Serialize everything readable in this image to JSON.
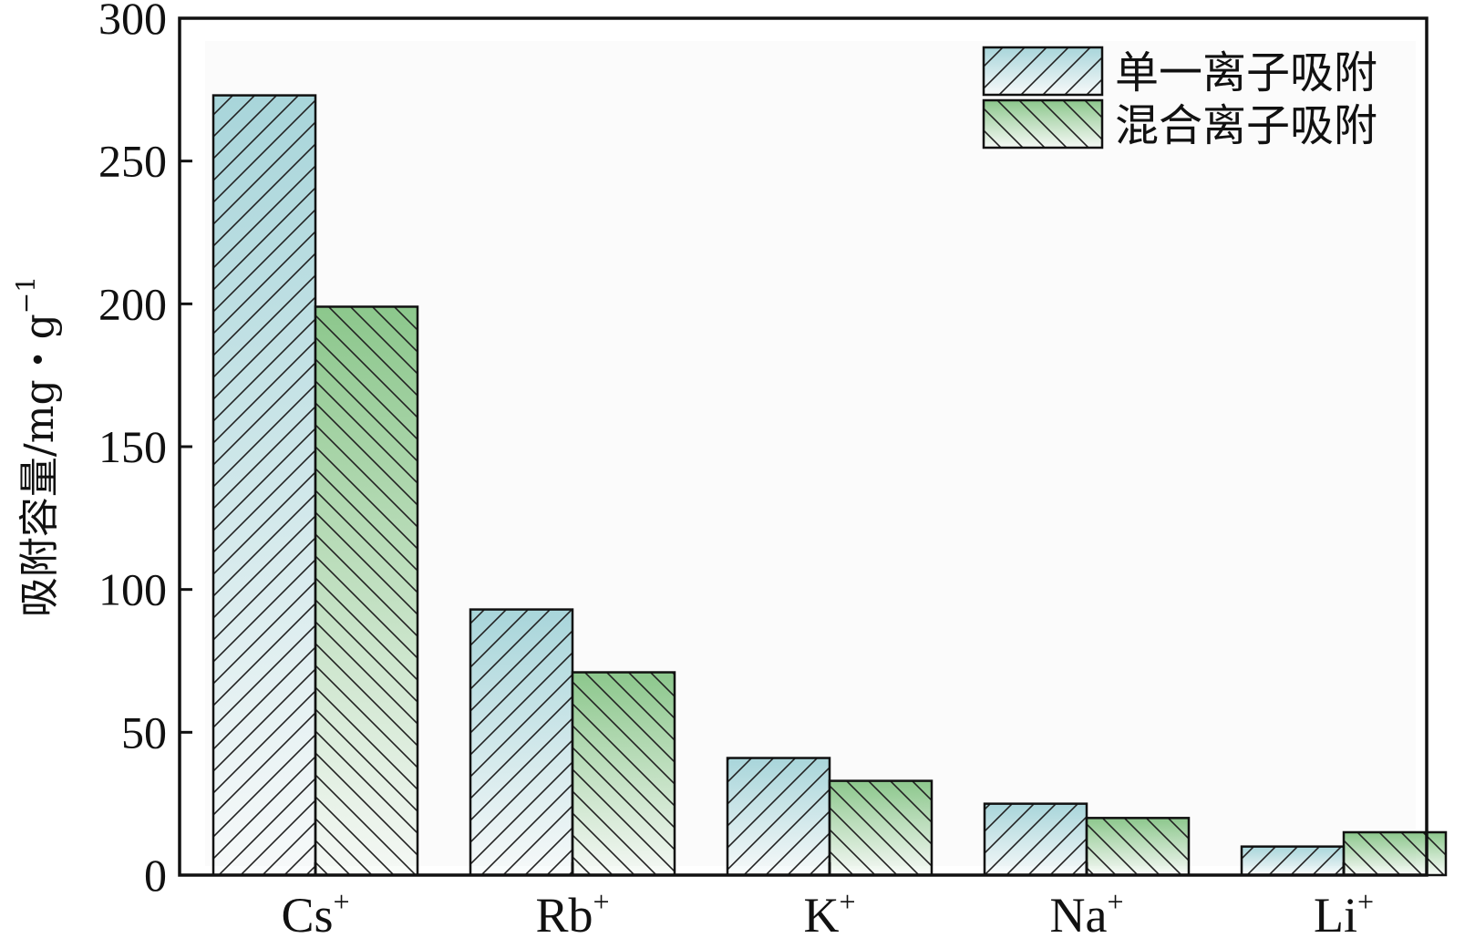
{
  "chart_data": {
    "type": "bar",
    "categories": [
      {
        "base": "Cs",
        "sup": "+"
      },
      {
        "base": "Rb",
        "sup": "+"
      },
      {
        "base": "K",
        "sup": "+"
      },
      {
        "base": "Na",
        "sup": "+"
      },
      {
        "base": "Li",
        "sup": "+"
      }
    ],
    "series": [
      {
        "name": "单一离子吸附",
        "values": [
          273,
          93,
          41,
          25,
          10
        ],
        "color": "#a8d5da",
        "hatch": "forward"
      },
      {
        "name": "混合离子吸附",
        "values": [
          199,
          71,
          33,
          20,
          15
        ],
        "color": "#8cc78c",
        "hatch": "backward"
      }
    ],
    "ylabel": {
      "main": "吸附容量/mg・g",
      "sup": "−1"
    },
    "ylim": [
      0,
      300
    ],
    "yticks": [
      0,
      50,
      100,
      150,
      200,
      250,
      300
    ],
    "grid": false,
    "legend_position": "top-right"
  }
}
